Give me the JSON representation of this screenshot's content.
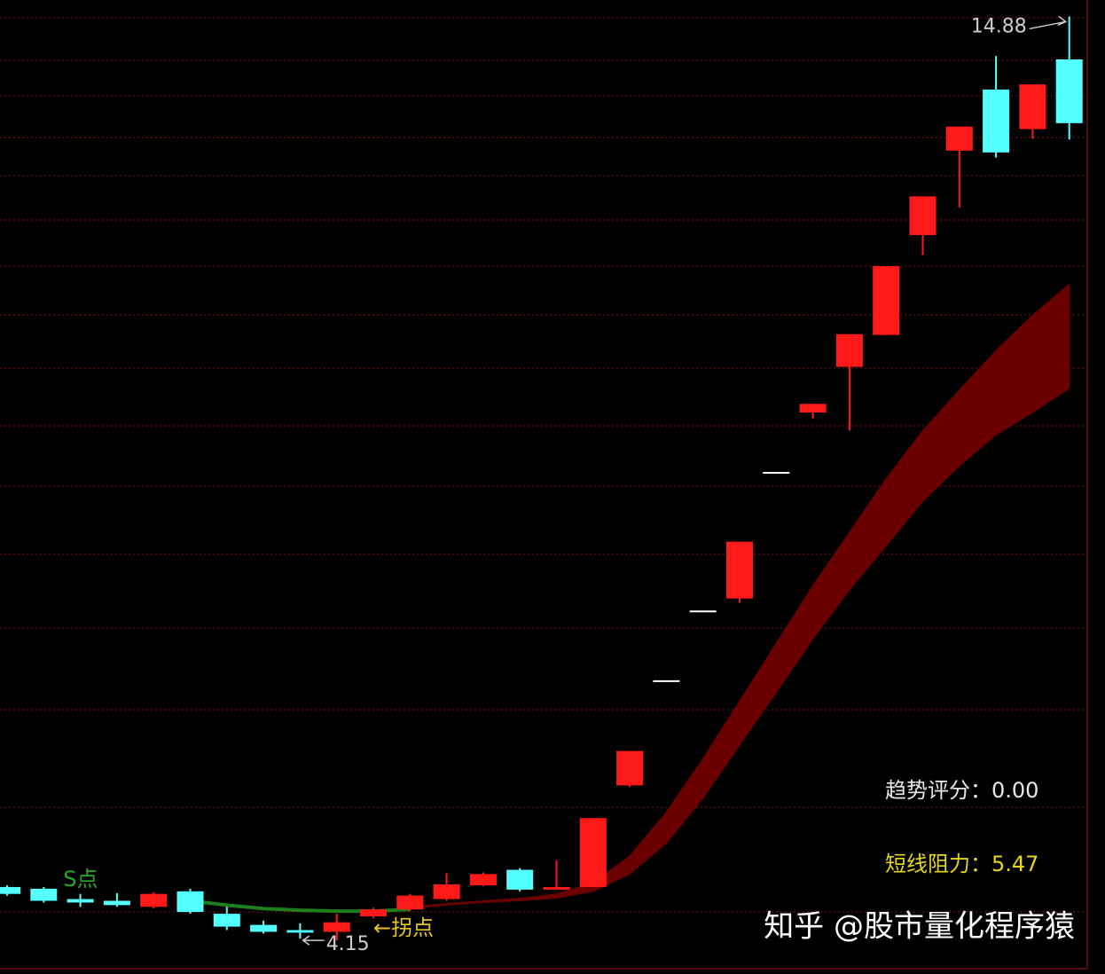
{
  "chart_data": {
    "type": "candlestick",
    "ylim": [
      3.76,
      15.07
    ],
    "up_color": "#ff1a1a",
    "down_color": "#54ffff",
    "candles": [
      {
        "open": 4.77,
        "high": 4.79,
        "low": 4.67,
        "close": 4.69
      },
      {
        "open": 4.75,
        "high": 4.77,
        "low": 4.59,
        "close": 4.61
      },
      {
        "open": 4.63,
        "high": 4.69,
        "low": 4.54,
        "close": 4.59
      },
      {
        "open": 4.61,
        "high": 4.7,
        "low": 4.54,
        "close": 4.56
      },
      {
        "open": 4.54,
        "high": 4.71,
        "low": 4.52,
        "close": 4.69
      },
      {
        "open": 4.72,
        "high": 4.75,
        "low": 4.46,
        "close": 4.48
      },
      {
        "open": 4.46,
        "high": 4.54,
        "low": 4.27,
        "close": 4.31
      },
      {
        "open": 4.33,
        "high": 4.38,
        "low": 4.23,
        "close": 4.25
      },
      {
        "open": 4.27,
        "high": 4.35,
        "low": 4.17,
        "close": 4.24
      },
      {
        "open": 4.25,
        "high": 4.46,
        "low": 4.15,
        "close": 4.36
      },
      {
        "open": 4.43,
        "high": 4.53,
        "low": 4.41,
        "close": 4.51
      },
      {
        "open": 4.51,
        "high": 4.69,
        "low": 4.49,
        "close": 4.67
      },
      {
        "open": 4.63,
        "high": 4.93,
        "low": 4.61,
        "close": 4.8
      },
      {
        "open": 4.79,
        "high": 4.94,
        "low": 4.78,
        "close": 4.92
      },
      {
        "open": 4.97,
        "high": 4.99,
        "low": 4.72,
        "close": 4.74
      },
      {
        "open": 4.74,
        "high": 5.08,
        "low": 4.74,
        "close": 4.77
      },
      {
        "open": 4.77,
        "high": 5.57,
        "low": 4.77,
        "close": 5.57
      },
      {
        "open": 5.95,
        "high": 6.35,
        "low": 5.93,
        "close": 6.35
      },
      {
        "open": 7.16,
        "high": 7.16,
        "low": 7.16,
        "close": 7.16
      },
      {
        "open": 7.97,
        "high": 7.97,
        "low": 7.97,
        "close": 7.97
      },
      {
        "open": 8.12,
        "high": 8.78,
        "low": 8.07,
        "close": 8.78
      },
      {
        "open": 9.58,
        "high": 9.58,
        "low": 9.58,
        "close": 9.58
      },
      {
        "open": 10.28,
        "high": 10.38,
        "low": 10.21,
        "close": 10.38
      },
      {
        "open": 10.81,
        "high": 11.19,
        "low": 10.07,
        "close": 11.19
      },
      {
        "open": 11.18,
        "high": 11.98,
        "low": 11.18,
        "close": 11.98
      },
      {
        "open": 12.34,
        "high": 12.79,
        "low": 12.11,
        "close": 12.79
      },
      {
        "open": 13.32,
        "high": 13.6,
        "low": 12.66,
        "close": 13.6
      },
      {
        "open": 14.03,
        "high": 14.42,
        "low": 13.24,
        "close": 13.3
      },
      {
        "open": 13.57,
        "high": 14.09,
        "low": 13.46,
        "close": 14.09
      },
      {
        "open": 14.38,
        "high": 14.88,
        "low": 13.45,
        "close": 13.64
      }
    ],
    "band": {
      "color": "#6b0000",
      "upper": [
        null,
        null,
        null,
        null,
        null,
        null,
        null,
        null,
        null,
        null,
        null,
        4.54,
        4.58,
        4.61,
        4.64,
        4.69,
        4.82,
        5.13,
        5.64,
        6.26,
        6.93,
        7.6,
        8.27,
        8.89,
        9.51,
        10.07,
        10.54,
        11.0,
        11.41,
        11.77
      ],
      "lower": [
        null,
        null,
        null,
        null,
        null,
        null,
        null,
        null,
        null,
        null,
        null,
        4.52,
        4.56,
        4.59,
        4.61,
        4.64,
        4.72,
        4.92,
        5.28,
        5.8,
        6.42,
        7.03,
        7.65,
        8.22,
        8.73,
        9.25,
        9.66,
        10.02,
        10.28,
        10.56
      ]
    },
    "trend_line": {
      "color": "#1f7f1f",
      "values": [
        null,
        null,
        null,
        null,
        null,
        4.61,
        4.56,
        4.52,
        4.5,
        4.49,
        4.49,
        4.51,
        null,
        null,
        null,
        null,
        null,
        null,
        null,
        null,
        null,
        null,
        null,
        null,
        null,
        null,
        null,
        null,
        null,
        null
      ]
    },
    "high_marker": 14.88,
    "low_marker": 4.15,
    "annotations": [
      {
        "text": "S点",
        "color": "#22aa22",
        "index": 1
      },
      {
        "text": "←拐点",
        "color": "#e6c619",
        "index": 10
      }
    ],
    "indicators": [
      {
        "name": "趋势评分：",
        "value": 0,
        "value_label": "0.00",
        "color": "#e8e8e8"
      },
      {
        "name": "短线阻力：",
        "value": 5.47,
        "color": "#e6d619"
      }
    ],
    "watermark": "知乎 @股市量化程序猿"
  }
}
